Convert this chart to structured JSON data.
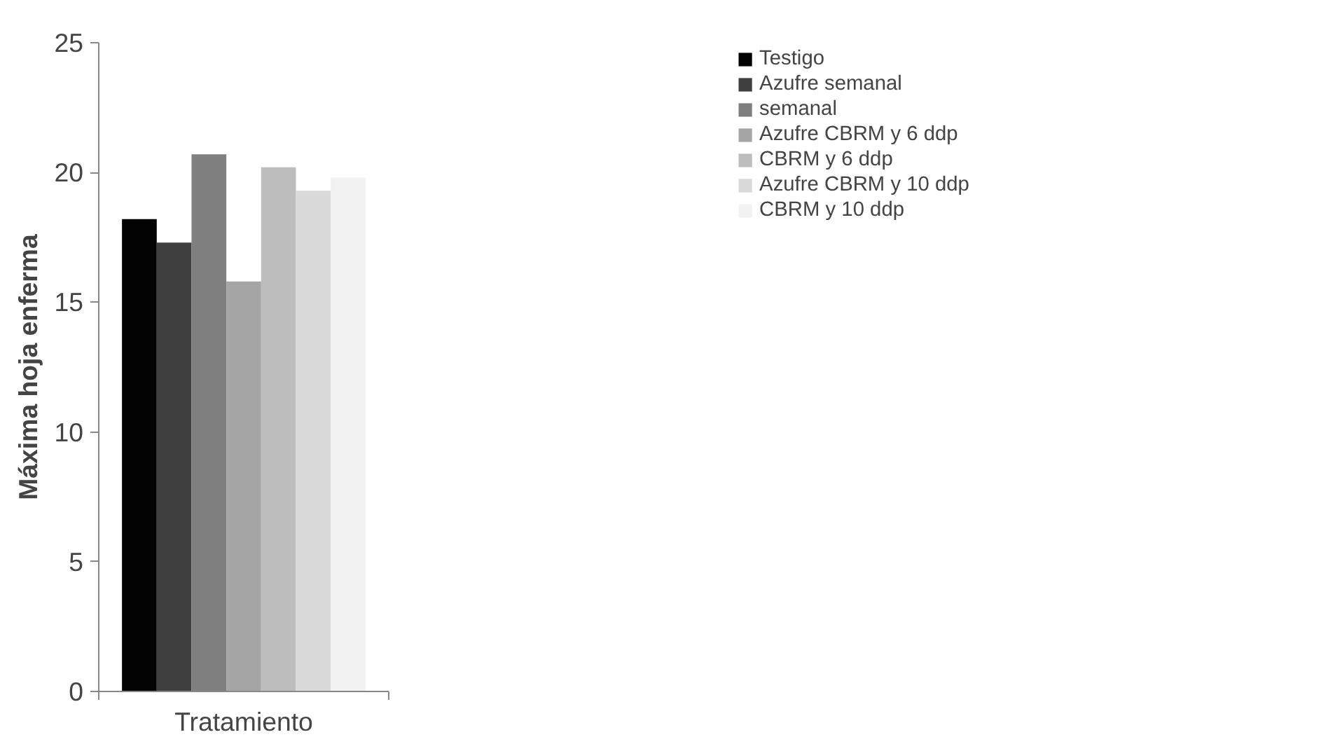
{
  "chart_data": {
    "type": "bar",
    "xlabel": "Tratamiento",
    "ylabel": "Máxima hoja enferma",
    "categories": [
      null
    ],
    "series": [
      {
        "name": "Testigo",
        "color": "#030303",
        "values": [
          18.2
        ]
      },
      {
        "name": "Azufre semanal",
        "color": "#404040",
        "values": [
          17.3
        ]
      },
      {
        "name": "semanal",
        "color": "#7f7f7f",
        "values": [
          20.7
        ]
      },
      {
        "name": "Azufre CBRM y 6 ddp",
        "color": "#a5a5a5",
        "values": [
          15.8
        ]
      },
      {
        "name": "CBRM y 6 ddp",
        "color": "#bdbdbd",
        "values": [
          20.2
        ]
      },
      {
        "name": "Azufre CBRM y 10 ddp",
        "color": "#d9d9d9",
        "values": [
          19.3
        ]
      },
      {
        "name": "CBRM y 10 ddp",
        "color": "#f2f2f2",
        "values": [
          19.8
        ]
      }
    ],
    "ylim": [
      0,
      25
    ],
    "yticks": [
      0,
      5,
      10,
      15,
      20,
      25
    ],
    "grid": false,
    "legend": "top right",
    "tick_labels": "y"
  }
}
